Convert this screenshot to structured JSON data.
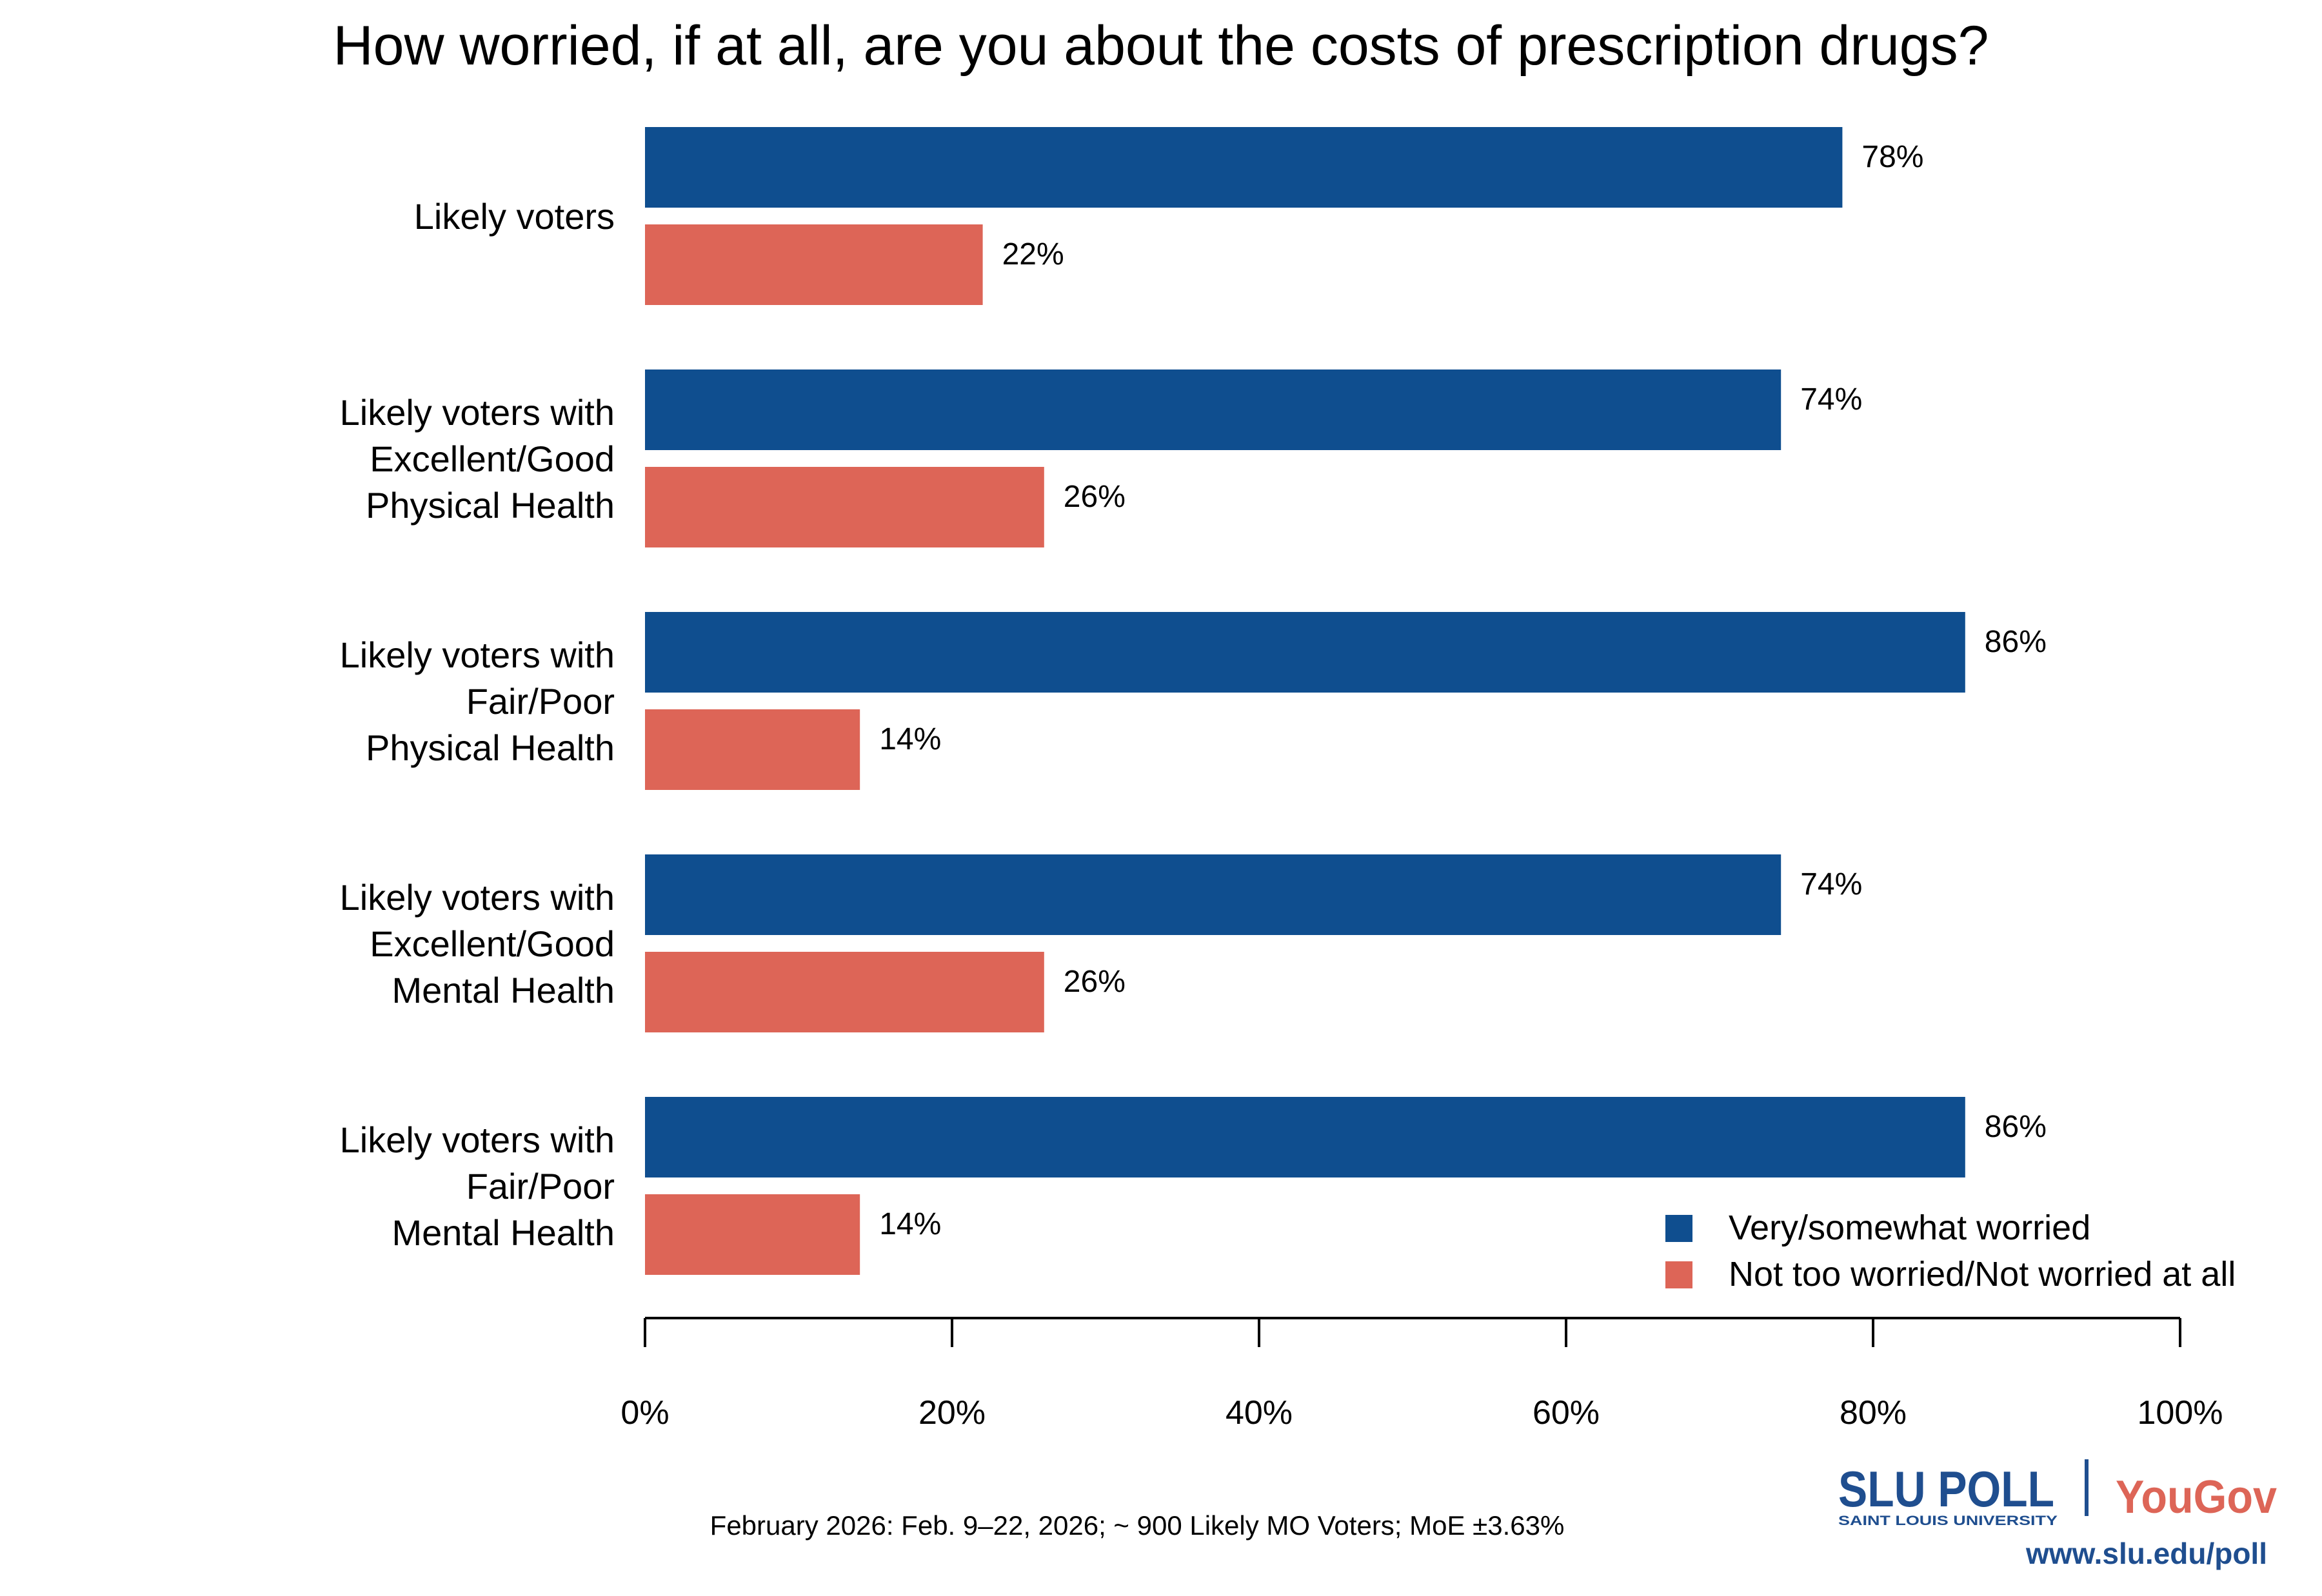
{
  "chart_data": {
    "type": "bar",
    "orientation": "horizontal",
    "title": "How worried, if at all, are you about the costs of prescription drugs?",
    "categories": [
      [
        "Likely voters"
      ],
      [
        "Likely voters with",
        "Excellent/Good",
        "Physical Health"
      ],
      [
        "Likely voters with",
        "Fair/Poor",
        "Physical Health"
      ],
      [
        "Likely voters with",
        "Excellent/Good",
        "Mental Health"
      ],
      [
        "Likely voters with",
        "Fair/Poor",
        "Mental Health"
      ]
    ],
    "series": [
      {
        "name": "Very/somewhat worried",
        "color": "#0f4e8f",
        "values": [
          78,
          74,
          86,
          74,
          86
        ],
        "labels": [
          "78%",
          "74%",
          "86%",
          "74%",
          "86%"
        ]
      },
      {
        "name": "Not too worried/Not worried at all",
        "color": "#dd6557",
        "values": [
          22,
          26,
          14,
          26,
          14
        ],
        "labels": [
          "22%",
          "26%",
          "14%",
          "26%",
          "14%"
        ]
      }
    ],
    "xlim": [
      0,
      100
    ],
    "xticks": [
      0,
      20,
      40,
      60,
      80,
      100
    ],
    "xtick_labels": [
      "0%",
      "20%",
      "40%",
      "60%",
      "80%",
      "100%"
    ],
    "grid": false,
    "legend_position": "bottom-right"
  },
  "footer": {
    "note": "February 2026: Feb. 9–22, 2026; ~ 900 Likely MO Voters; MoE ±3.63%",
    "logo_slu": "SLU POLL",
    "logo_slu_sub": "SAINT LOUIS UNIVERSITY",
    "logo_yougov": "YouGov",
    "url": "www.slu.edu/poll",
    "brand_blue": "#1f4e8f",
    "brand_red": "#dd6557"
  }
}
